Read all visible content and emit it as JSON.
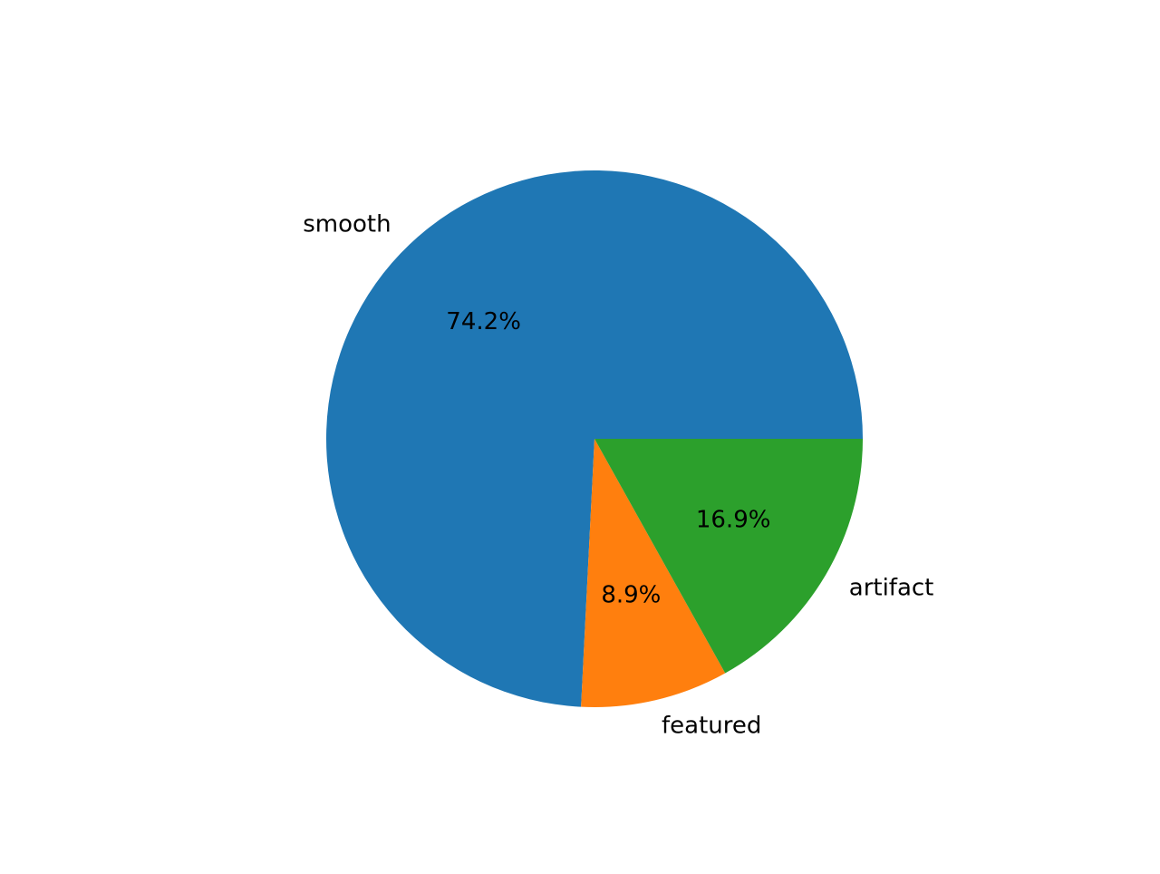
{
  "chart_data": {
    "type": "pie",
    "title": "",
    "slices": [
      {
        "label": "smooth",
        "value": 74.2,
        "pct_label": "74.2%",
        "color": "#1f77b4"
      },
      {
        "label": "featured",
        "value": 8.9,
        "pct_label": "8.9%",
        "color": "#ff7f0e"
      },
      {
        "label": "artifact",
        "value": 16.9,
        "pct_label": "16.9%",
        "color": "#2ca02c"
      }
    ],
    "start_angle_deg": 0,
    "direction": "counterclockwise",
    "legend": "none"
  }
}
